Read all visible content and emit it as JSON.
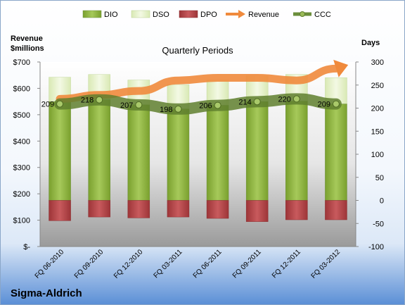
{
  "company": "Sigma-Aldrich",
  "chart_data": {
    "type": "bar",
    "title": "Quarterly Periods",
    "left_axis_label_line1": "Revenue",
    "left_axis_label_line2": "$millions",
    "right_axis_label": "Days",
    "categories": [
      "FQ 06-2010",
      "FQ 09-2010",
      "FQ 12-2010",
      "FQ 03-2011",
      "FQ 06-2011",
      "FQ 09-2011",
      "FQ 12-2011",
      "FQ 03-2012"
    ],
    "left_ticks": [
      "$-",
      "$100",
      "$200",
      "$300",
      "$400",
      "$500",
      "$600",
      "$700"
    ],
    "right_ticks": [
      "-100",
      "-50",
      "0",
      "50",
      "100",
      "150",
      "200",
      "250",
      "300"
    ],
    "ylim_left": [
      0,
      700
    ],
    "ylim_right": [
      -100,
      300
    ],
    "series": [
      {
        "name": "DIO",
        "values": [
          214,
          218,
          207,
          198,
          206,
          214,
          215,
          209
        ],
        "color": "#8db33e"
      },
      {
        "name": "DSO",
        "values": [
          53,
          55,
          54,
          53,
          55,
          56,
          58,
          57
        ],
        "color": "#e8f2cf"
      },
      {
        "name": "DPO",
        "values": [
          -44,
          -36,
          -38,
          -36,
          -39,
          -46,
          -42,
          -42
        ],
        "color": "#b5474a"
      },
      {
        "name": "Revenue",
        "values": [
          560,
          575,
          590,
          630,
          640,
          640,
          630,
          675
        ],
        "color": "#f08a3c"
      },
      {
        "name": "CCC",
        "values": [
          209,
          218,
          207,
          198,
          206,
          214,
          220,
          209
        ],
        "color": "#6b8e3b"
      }
    ],
    "ccc_labels": [
      "209",
      "218",
      "207",
      "198",
      "206",
      "214",
      "220",
      "209"
    ],
    "grid": false,
    "legend_position": "top"
  }
}
